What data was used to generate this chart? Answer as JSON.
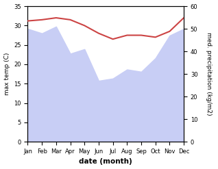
{
  "months": [
    "Jan",
    "Feb",
    "Mar",
    "Apr",
    "May",
    "Jun",
    "Jul",
    "Aug",
    "Sep",
    "Oct",
    "Nov",
    "Dec"
  ],
  "temp": [
    31.2,
    31.5,
    32.0,
    31.5,
    30.0,
    28.0,
    26.5,
    27.5,
    27.5,
    27.0,
    28.5,
    32.0
  ],
  "precip": [
    50,
    48,
    51,
    39,
    41,
    27,
    28,
    32,
    31,
    37,
    47,
    50
  ],
  "temp_color": "#cc4444",
  "precip_fill_color": "#c8cef5",
  "bg_color": "#ffffff",
  "xlabel": "date (month)",
  "ylabel_left": "max temp (C)",
  "ylabel_right": "med. precipitation (kg/m2)",
  "ylim_left": [
    0,
    35
  ],
  "ylim_right": [
    0,
    60
  ],
  "yticks_left": [
    0,
    5,
    10,
    15,
    20,
    25,
    30,
    35
  ],
  "yticks_right": [
    0,
    10,
    20,
    30,
    40,
    50,
    60
  ]
}
